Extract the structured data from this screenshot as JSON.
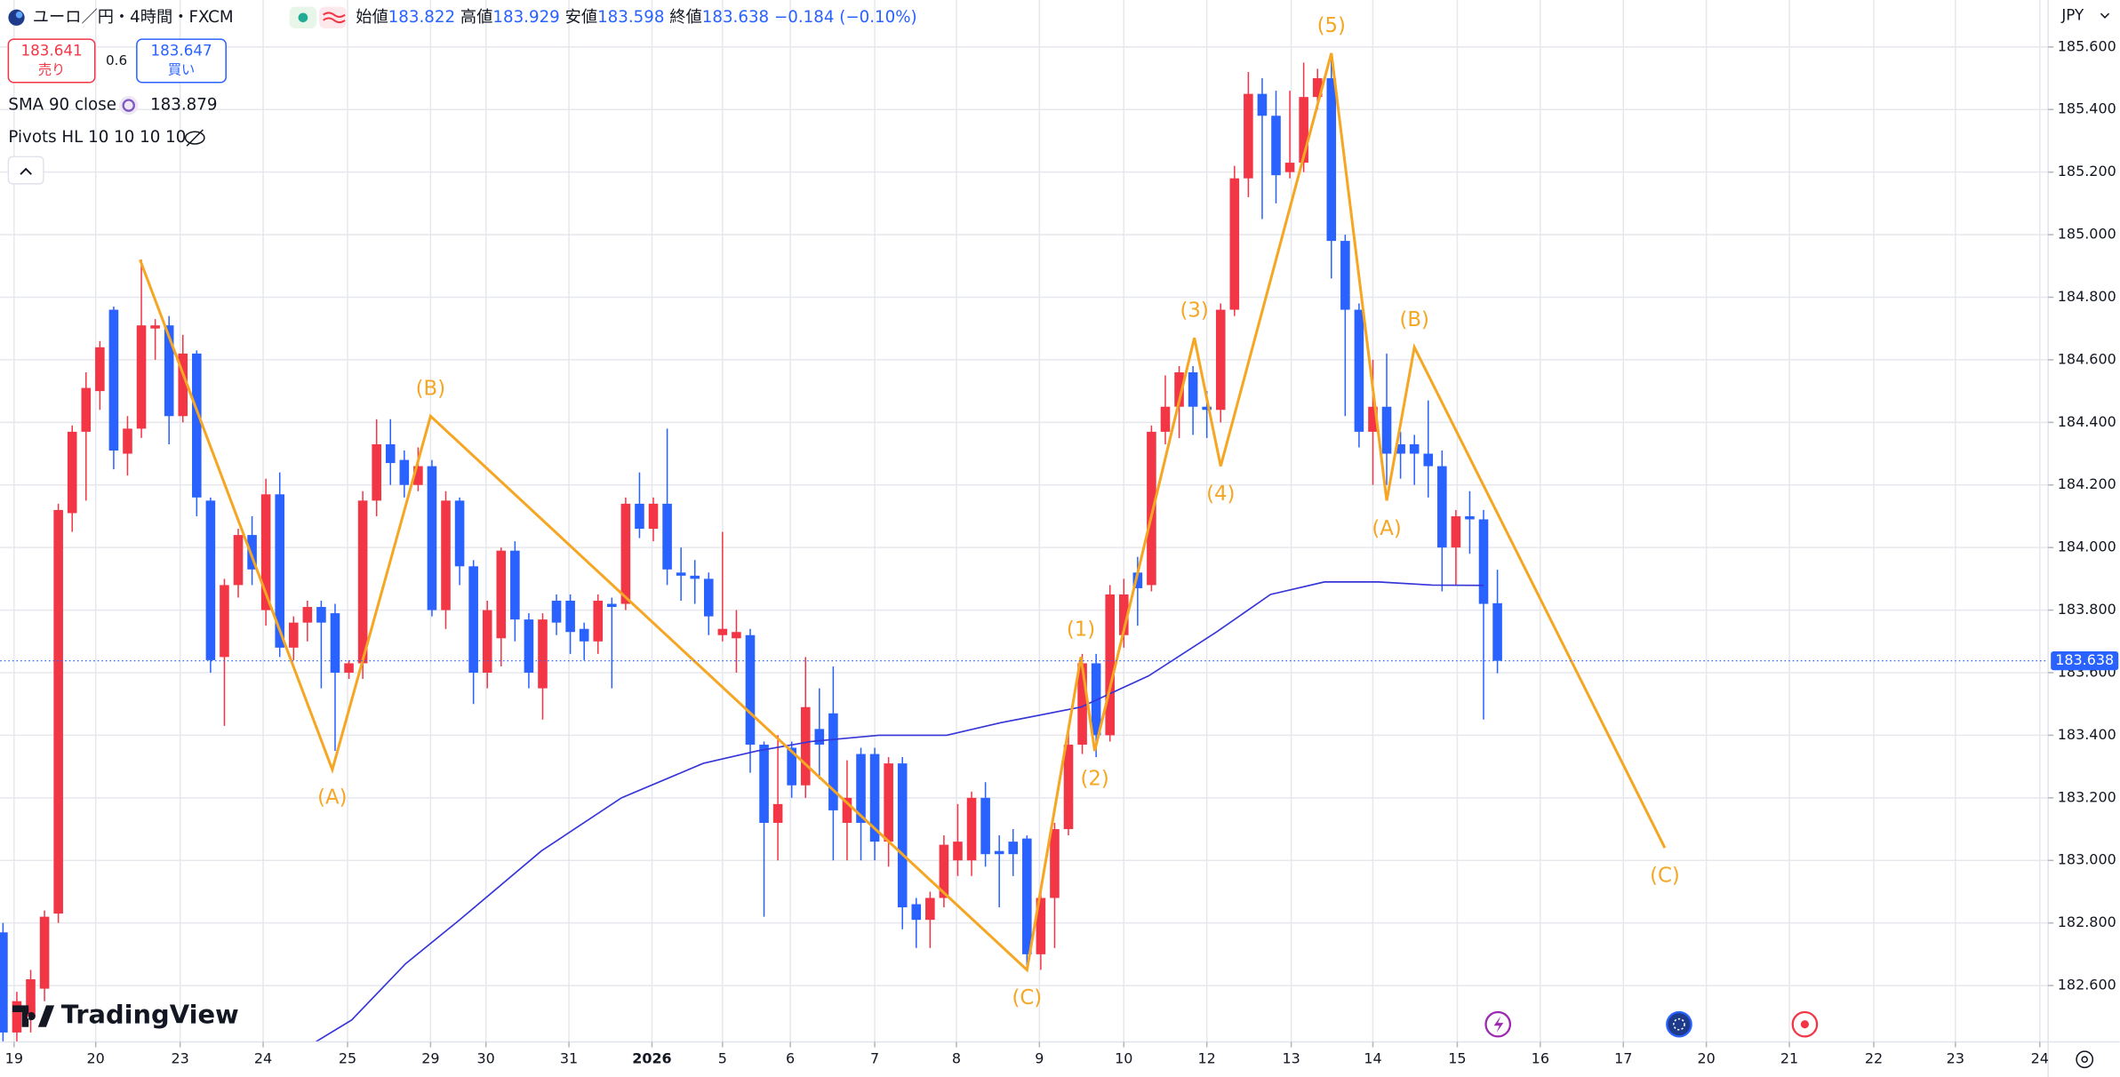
{
  "chart_data": {
    "type": "candlestick",
    "title": "ユーロ／円・4時間・FXCM",
    "up_color": "#f23645",
    "down_color": "#2962ff",
    "candles": {
      "open": [
        182.77,
        182.45,
        182.5,
        182.59,
        182.83,
        184.11,
        184.37,
        184.5,
        184.76,
        184.3,
        184.38,
        184.7,
        184.71,
        184.42,
        184.62,
        184.15,
        183.65,
        183.88,
        184.04,
        183.8,
        184.17,
        183.68,
        183.76,
        183.81,
        183.79,
        183.6,
        183.63,
        184.15,
        184.33,
        184.28,
        184.2,
        184.26,
        183.8,
        184.15,
        183.94,
        183.6,
        183.71,
        183.99,
        183.77,
        183.55,
        183.83,
        183.83,
        183.74,
        183.7,
        183.82,
        183.82,
        184.14,
        184.06,
        184.14,
        183.92,
        183.91,
        183.9,
        183.72,
        183.71,
        183.72,
        183.37,
        183.12,
        183.36,
        183.24,
        183.42,
        183.47,
        183.12,
        183.34,
        183.34,
        183.06,
        183.31,
        182.86,
        182.81,
        182.88,
        183.0,
        183.0,
        183.2,
        183.03,
        183.06,
        183.07,
        182.7,
        182.88,
        183.1,
        183.37,
        183.63,
        183.4,
        183.72,
        183.92,
        183.88,
        184.37,
        184.45,
        184.56,
        184.45,
        184.44,
        184.76,
        185.18,
        185.45,
        185.38,
        185.2,
        185.23,
        185.44,
        185.5,
        184.98,
        184.76,
        184.37,
        184.45,
        184.33,
        184.33,
        184.3,
        184.26,
        184.0,
        184.1,
        184.09,
        183.822
      ],
      "high": [
        182.8,
        182.58,
        182.65,
        182.84,
        184.14,
        184.39,
        184.56,
        184.66,
        184.77,
        184.42,
        184.92,
        184.73,
        184.74,
        184.68,
        184.63,
        184.16,
        183.9,
        184.06,
        184.1,
        184.22,
        184.24,
        183.78,
        183.83,
        183.83,
        183.82,
        183.64,
        184.18,
        184.41,
        184.41,
        184.31,
        184.32,
        184.28,
        184.18,
        184.16,
        183.96,
        183.83,
        184.0,
        184.02,
        183.79,
        183.79,
        183.85,
        183.85,
        183.76,
        183.85,
        183.84,
        184.16,
        184.24,
        184.16,
        184.38,
        184.0,
        183.96,
        183.92,
        184.05,
        183.8,
        183.74,
        183.38,
        183.4,
        183.38,
        183.65,
        183.55,
        183.62,
        183.32,
        183.36,
        183.36,
        183.33,
        183.33,
        182.88,
        182.9,
        183.08,
        183.18,
        183.22,
        183.25,
        183.08,
        183.1,
        183.08,
        182.92,
        183.12,
        183.42,
        183.66,
        183.66,
        183.88,
        183.9,
        183.97,
        184.39,
        184.55,
        184.58,
        184.58,
        184.5,
        184.78,
        185.22,
        185.52,
        185.5,
        185.46,
        185.46,
        185.55,
        185.53,
        185.56,
        185.0,
        184.78,
        184.6,
        184.62,
        184.37,
        184.36,
        184.47,
        184.31,
        184.12,
        184.18,
        184.12,
        183.929
      ],
      "low": [
        182.42,
        182.42,
        182.45,
        182.55,
        182.8,
        184.05,
        184.15,
        184.44,
        184.25,
        184.23,
        184.35,
        184.6,
        184.33,
        184.4,
        184.1,
        183.6,
        183.43,
        183.84,
        183.88,
        183.75,
        183.65,
        183.64,
        183.7,
        183.55,
        183.35,
        183.58,
        183.58,
        184.1,
        184.2,
        184.16,
        184.18,
        183.78,
        183.74,
        183.88,
        183.5,
        183.55,
        183.62,
        183.7,
        183.55,
        183.45,
        183.72,
        183.66,
        183.64,
        183.66,
        183.55,
        183.8,
        184.03,
        184.02,
        183.88,
        183.83,
        183.82,
        183.72,
        183.7,
        183.6,
        183.28,
        182.82,
        183.0,
        183.2,
        183.2,
        183.26,
        183.0,
        183.0,
        183.0,
        183.0,
        182.98,
        182.78,
        182.72,
        182.72,
        182.85,
        182.95,
        182.95,
        182.98,
        182.85,
        182.95,
        182.66,
        182.65,
        182.72,
        183.08,
        183.34,
        183.33,
        183.38,
        183.68,
        183.75,
        183.86,
        184.33,
        184.35,
        184.36,
        184.35,
        184.4,
        184.74,
        185.12,
        185.05,
        185.1,
        185.18,
        185.2,
        185.4,
        184.86,
        184.42,
        184.32,
        184.2,
        184.2,
        184.22,
        184.2,
        184.16,
        183.86,
        183.88,
        183.98,
        183.45,
        183.598
      ],
      "close": [
        182.45,
        182.55,
        182.62,
        182.82,
        184.12,
        184.37,
        184.51,
        184.64,
        184.31,
        184.38,
        184.71,
        184.71,
        184.42,
        184.62,
        184.16,
        183.64,
        183.88,
        184.04,
        183.93,
        184.17,
        183.68,
        183.76,
        183.81,
        183.76,
        183.6,
        183.63,
        184.15,
        184.33,
        184.27,
        184.2,
        184.26,
        183.8,
        184.15,
        183.94,
        183.6,
        183.8,
        183.99,
        183.77,
        183.6,
        183.77,
        183.76,
        183.73,
        183.7,
        183.83,
        183.81,
        184.14,
        184.06,
        184.14,
        183.93,
        183.91,
        183.9,
        183.78,
        183.74,
        183.73,
        183.37,
        183.12,
        183.18,
        183.24,
        183.49,
        183.37,
        183.16,
        183.2,
        183.12,
        183.06,
        183.31,
        182.85,
        182.81,
        182.88,
        183.05,
        183.06,
        183.2,
        183.02,
        183.02,
        183.02,
        182.7,
        182.88,
        183.1,
        183.37,
        183.63,
        183.4,
        183.85,
        183.85,
        183.87,
        184.37,
        184.45,
        184.56,
        184.45,
        184.44,
        184.76,
        185.18,
        185.45,
        185.38,
        185.19,
        185.23,
        185.44,
        185.5,
        184.98,
        184.76,
        184.37,
        184.45,
        184.3,
        184.3,
        184.3,
        184.26,
        184.0,
        184.1,
        184.09,
        183.82,
        183.638
      ]
    },
    "sma": {
      "name": "SMA 90 close",
      "color": "#3535d8",
      "x": [
        22.6,
        25.2,
        29.1,
        33,
        38.9,
        44.7,
        50.6,
        54.5,
        58.4,
        63.3,
        68.2,
        72.1,
        77.9,
        82.8,
        87.7,
        91.6,
        95.5,
        99.4,
        103.3,
        107
      ],
      "values": [
        182.42,
        182.49,
        182.67,
        182.81,
        183.03,
        183.2,
        183.31,
        183.35,
        183.38,
        183.4,
        183.4,
        183.44,
        183.49,
        183.59,
        183.73,
        183.85,
        183.89,
        183.89,
        183.88,
        183.879
      ]
    },
    "pivots": {
      "name": "Pivots HL 10 10 10 10"
    },
    "waves": {
      "color": "#f5a623",
      "x": [
        9.9,
        23.8,
        30.9,
        74,
        77.9,
        78.9,
        86.1,
        88,
        96,
        100,
        102,
        120.1
      ],
      "values": [
        184.92,
        183.29,
        184.42,
        182.65,
        183.65,
        183.35,
        184.67,
        184.26,
        185.58,
        184.15,
        184.64,
        183.04
      ],
      "labels": [
        null,
        "(A)",
        "(B)",
        "(C)",
        "(1)",
        "(2)",
        "(3)",
        "(4)",
        "(5)",
        "(A)",
        "(B)",
        "(C)"
      ]
    },
    "xlim": [
      -0.2,
      147.8
    ],
    "xticks": [
      {
        "value": 0.8,
        "label": "19"
      },
      {
        "value": 6.7,
        "label": "20"
      },
      {
        "value": 12.8,
        "label": "23"
      },
      {
        "value": 18.8,
        "label": "24"
      },
      {
        "value": 24.9,
        "label": "25"
      },
      {
        "value": 30.9,
        "label": "29"
      },
      {
        "value": 34.9,
        "label": "30"
      },
      {
        "value": 40.9,
        "label": "31"
      },
      {
        "value": 46.9,
        "label": "2026"
      },
      {
        "value": 52,
        "label": "5"
      },
      {
        "value": 56.9,
        "label": "6"
      },
      {
        "value": 63,
        "label": "7"
      },
      {
        "value": 68.9,
        "label": "8"
      },
      {
        "value": 74.9,
        "label": "9"
      },
      {
        "value": 81,
        "label": "10"
      },
      {
        "value": 87,
        "label": "12"
      },
      {
        "value": 93.1,
        "label": "13"
      },
      {
        "value": 99,
        "label": "14"
      },
      {
        "value": 105.1,
        "label": "15"
      },
      {
        "value": 111.1,
        "label": "16"
      },
      {
        "value": 117.1,
        "label": "17"
      },
      {
        "value": 123.1,
        "label": "20"
      },
      {
        "value": 129.1,
        "label": "21"
      },
      {
        "value": 135.2,
        "label": "22"
      },
      {
        "value": 141.1,
        "label": "23"
      },
      {
        "value": 147.2,
        "label": "24"
      }
    ],
    "ylim": [
      182.42,
      185.75
    ],
    "yticks": [
      {
        "value": 182.6,
        "label": "182.600"
      },
      {
        "value": 182.8,
        "label": "182.800"
      },
      {
        "value": 183,
        "label": "183.000"
      },
      {
        "value": 183.2,
        "label": "183.200"
      },
      {
        "value": 183.4,
        "label": "183.400"
      },
      {
        "value": 183.6,
        "label": "183.600"
      },
      {
        "value": 183.8,
        "label": "183.800"
      },
      {
        "value": 184,
        "label": "184.000"
      },
      {
        "value": 184.2,
        "label": "184.200"
      },
      {
        "value": 184.4,
        "label": "184.400"
      },
      {
        "value": 184.6,
        "label": "184.600"
      },
      {
        "value": 184.8,
        "label": "184.800"
      },
      {
        "value": 185,
        "label": "185.000"
      },
      {
        "value": 185.2,
        "label": "185.200"
      },
      {
        "value": 185.4,
        "label": "185.400"
      },
      {
        "value": 185.6,
        "label": "185.600"
      }
    ],
    "grid": true,
    "currency": "JPY"
  },
  "header": {
    "open_label": "始値",
    "high_label": "高値",
    "low_label": "安値",
    "close_label": "終値",
    "change": "−0.184 (−0.10%)",
    "sell": {
      "price": "183.641",
      "label": "売り"
    },
    "spread": "0.6",
    "buy": {
      "price": "183.647",
      "label": "買い"
    }
  },
  "branding": "TradingView"
}
